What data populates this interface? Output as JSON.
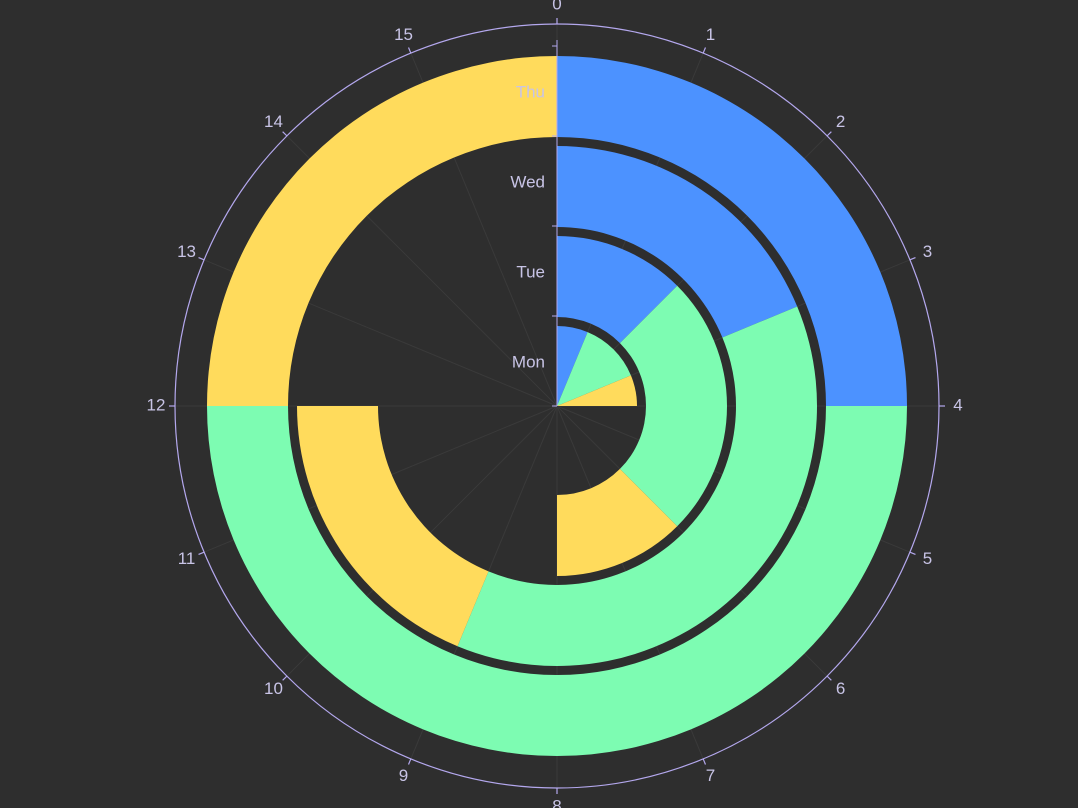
{
  "chart_data": {
    "type": "polar-stacked-bar",
    "angle_axis": {
      "min": 0,
      "max": 16,
      "ticks": [
        "0",
        "1",
        "2",
        "3",
        "4",
        "5",
        "6",
        "7",
        "8",
        "9",
        "10",
        "11",
        "12",
        "13",
        "14",
        "15"
      ]
    },
    "radius_axis": {
      "categories": [
        "Mon",
        "Tue",
        "Wed",
        "Thu"
      ]
    },
    "series": [
      {
        "color": "#4c92ff",
        "values": [
          1,
          2,
          3,
          4
        ]
      },
      {
        "color": "#7dfcb2",
        "values": [
          2,
          4,
          6,
          8
        ]
      },
      {
        "color": "#ffdb5c",
        "values": [
          1,
          2,
          3,
          4
        ]
      }
    ],
    "colors": {
      "background": "#2e2e2e",
      "axis": "#b4a8ee",
      "label": "#c8c4e6",
      "split_line": "#3a3a3a"
    }
  }
}
